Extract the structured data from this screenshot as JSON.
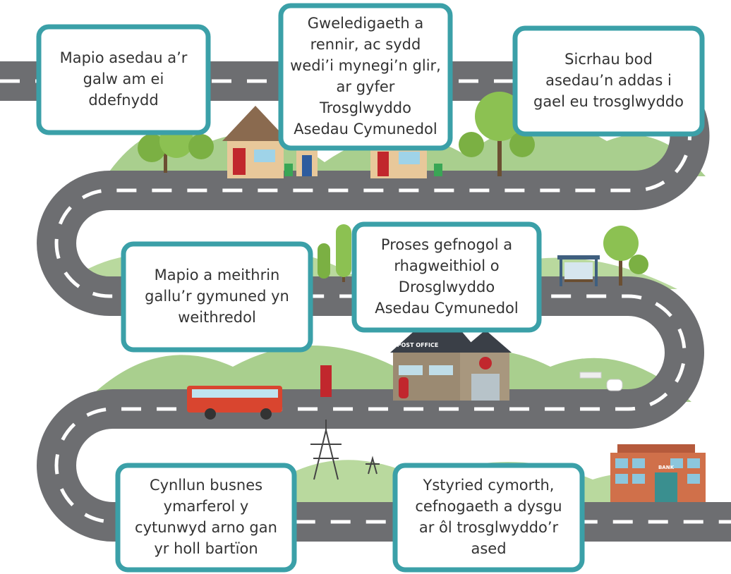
{
  "steps": [
    {
      "lines": [
        "Mapio asedau a’r",
        "galw am ei",
        "ddefnydd"
      ]
    },
    {
      "lines": [
        "Gweledigaeth a",
        "rennir, ac sydd",
        "wedi’i mynegi’n glir,",
        "ar gyfer",
        "Trosglwyddo",
        "Asedau Cymunedol"
      ]
    },
    {
      "lines": [
        "Sicrhau bod",
        "asedau’n addas i",
        "gael eu trosglwyddo"
      ]
    },
    {
      "lines": [
        "Mapio a meithrin",
        "gallu’r gymuned yn",
        "weithredol"
      ]
    },
    {
      "lines": [
        "Proses gefnogol a",
        "rhagweithiol o",
        "Drosglwyddo",
        "Asedau Cymunedol"
      ]
    },
    {
      "lines": [
        "Cynllun busnes",
        "ymarferol y",
        "cytunwyd arno gan",
        "yr holl bartïon"
      ]
    },
    {
      "lines": [
        "Ystyried cymorth,",
        "cefnogaeth a dysgu",
        "ar ôl trosglwyddo’r",
        "ased"
      ]
    }
  ],
  "signs": {
    "post_office": "POST OFFICE",
    "bank": "BANK"
  }
}
